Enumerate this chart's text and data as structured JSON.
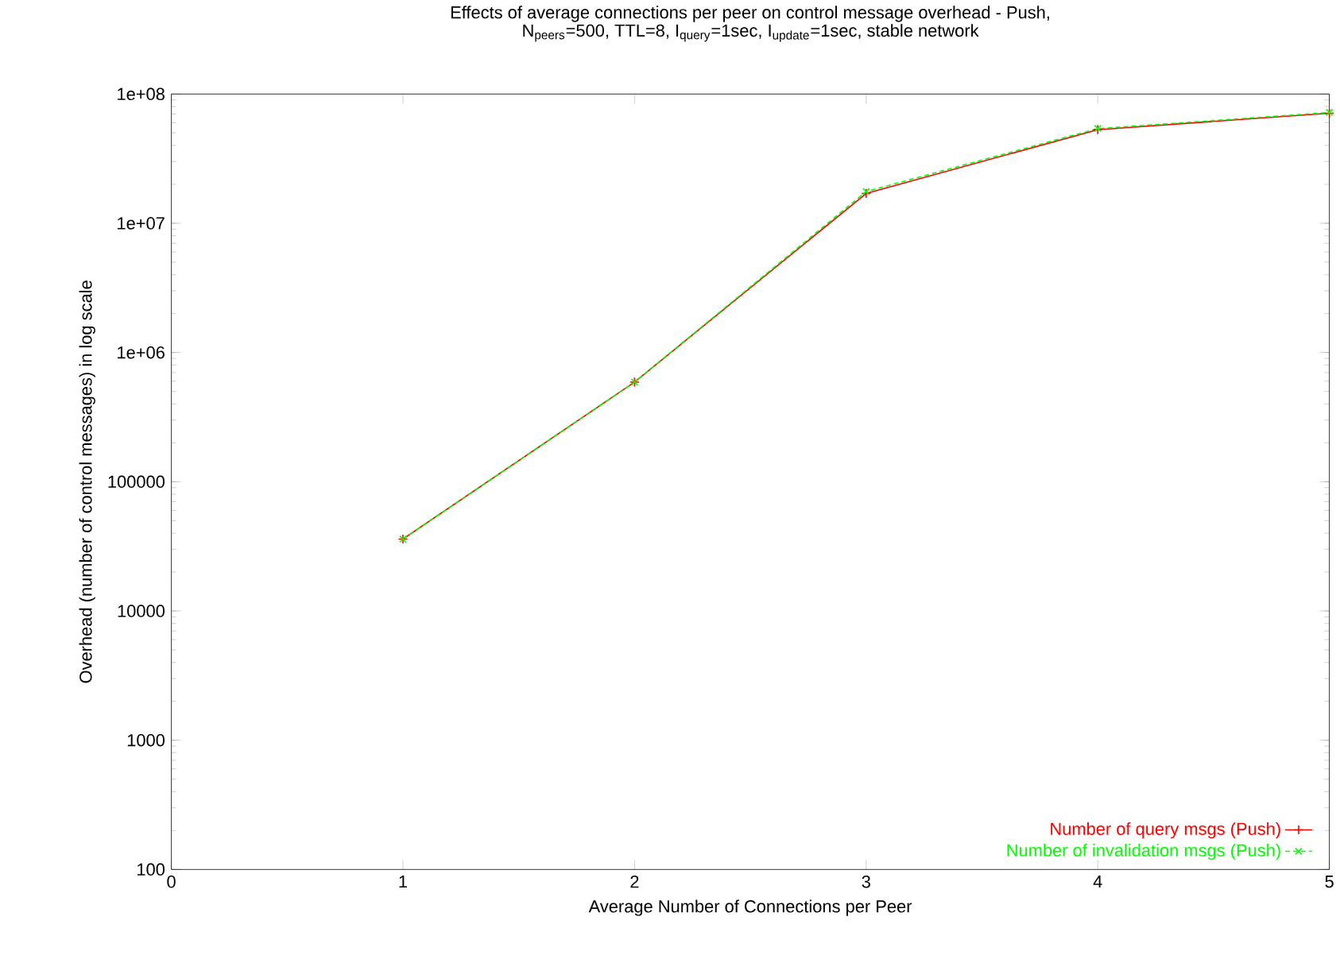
{
  "chart_data": {
    "type": "line",
    "title": "Effects of average connections per peer on control message overhead - Push,",
    "subtitle": "N$_{peers}$=500, TTL=8, I$_{query}$=1sec, I$_{update}$=1sec, stable network",
    "xlabel": "Average Number of Connections per Peer",
    "ylabel": "Overhead (number of control messages) in log scale",
    "x": [
      1,
      2,
      3,
      4,
      5
    ],
    "series": [
      {
        "name": "Number of query msgs (Push)",
        "color": "#ff0000",
        "values": [
          36000,
          590000,
          17000000,
          53000000,
          71000000
        ],
        "marker": "plus",
        "line_style": "solid"
      },
      {
        "name": "Number of invalidation msgs (Push)",
        "color": "#00ff00",
        "values": [
          36000,
          590000,
          17600000,
          54000000,
          72000000
        ],
        "marker": "cross",
        "line_style": "dashed"
      }
    ],
    "log": "y",
    "xlim": [
      0,
      5
    ],
    "ylim": [
      100,
      100000000
    ],
    "xticks": [
      0,
      1,
      2,
      3,
      4,
      5
    ],
    "yticks": [
      100,
      1000,
      10000,
      100000,
      {
        "value": 1000000,
        "label": "1e+06"
      },
      {
        "value": 10000000,
        "label": "1e+07"
      },
      {
        "value": 100000000,
        "label": "1e+08"
      }
    ],
    "grid": false,
    "legend": "bottom right"
  }
}
